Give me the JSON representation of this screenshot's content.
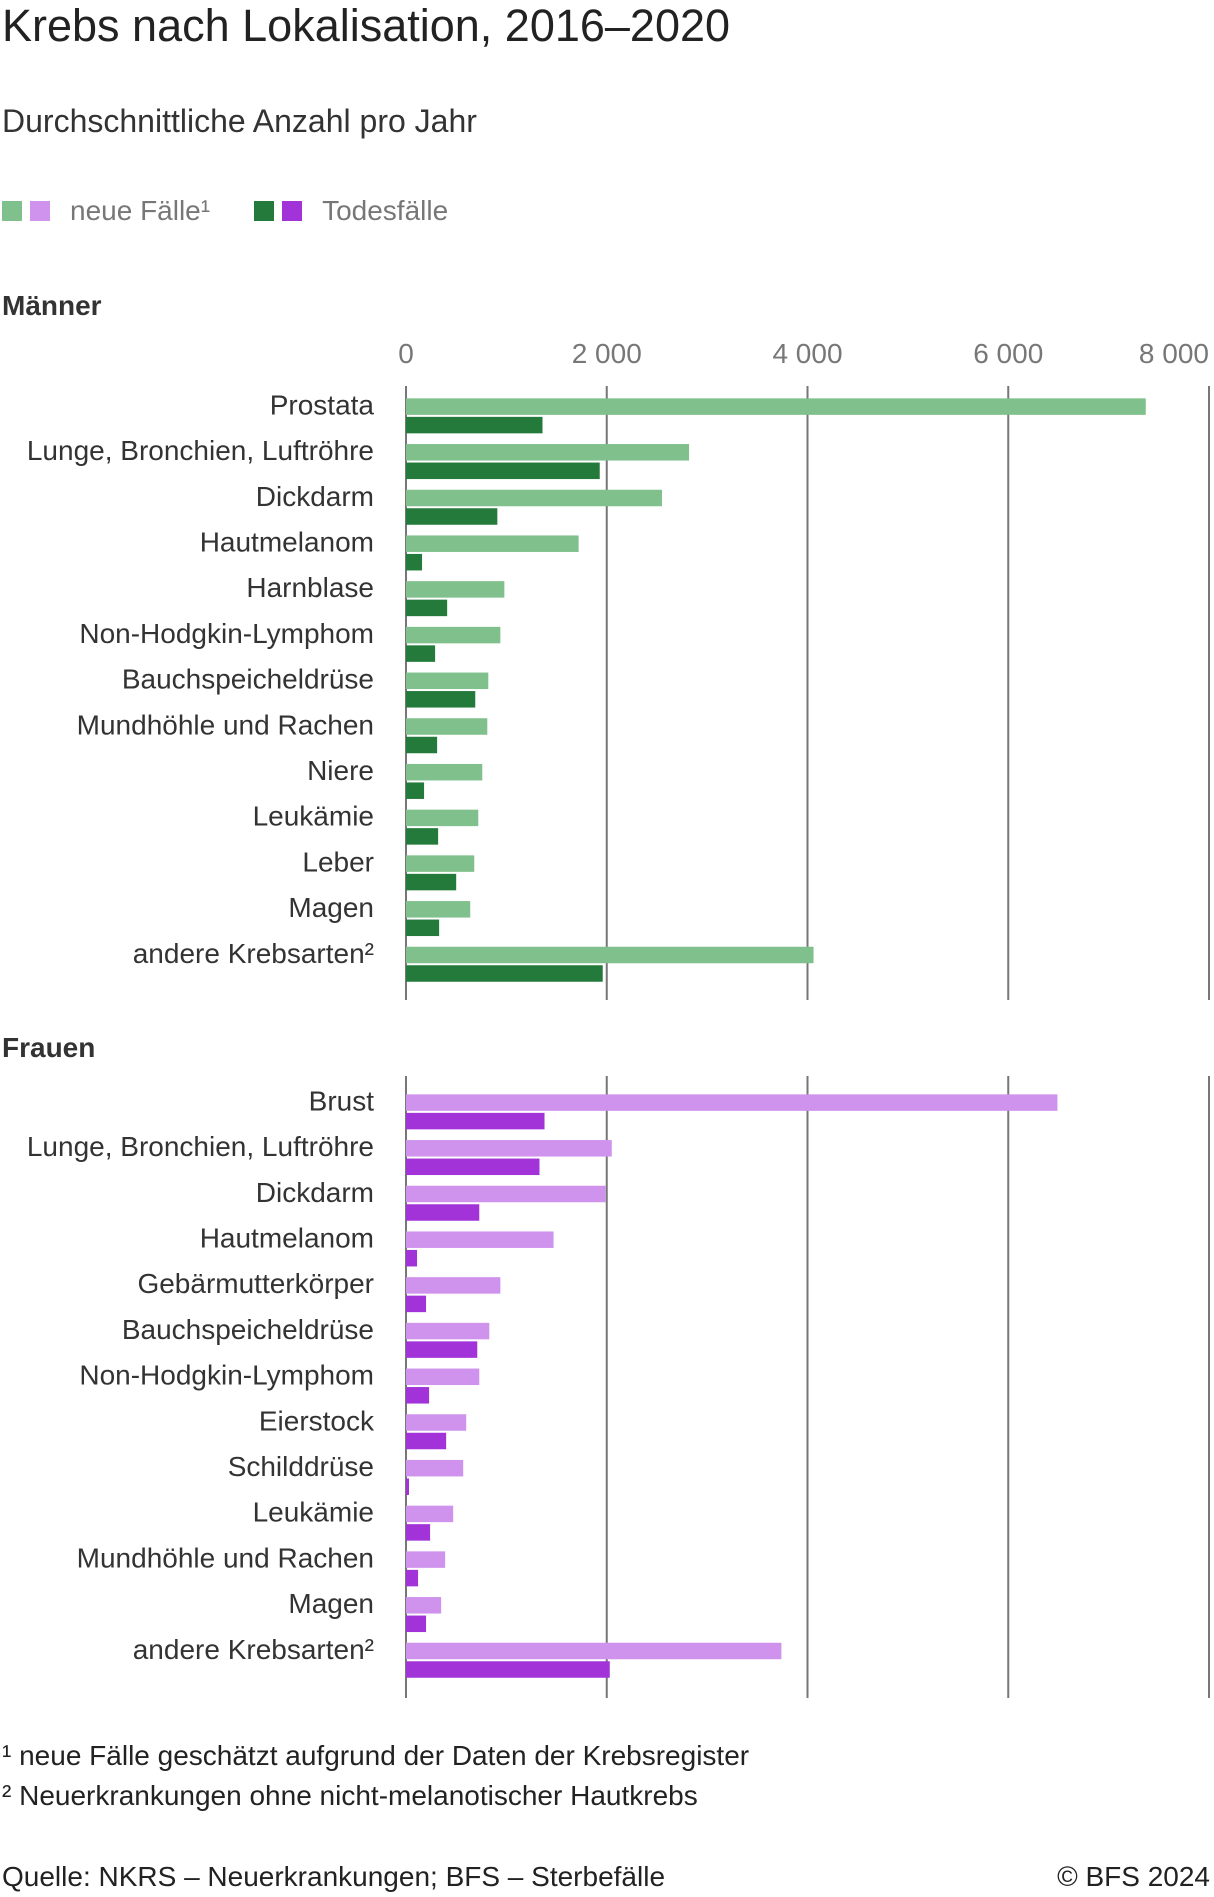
{
  "title": "Krebs nach Lokalisation, 2016–2020",
  "subtitle": "Durchschnittliche Anzahl pro Jahr",
  "legend": {
    "new_cases_label": "neue Fälle¹",
    "deaths_label": "Todesfälle"
  },
  "colors": {
    "men_new": "#7fc08c",
    "men_deaths": "#247a3b",
    "women_new": "#cf93ee",
    "women_deaths": "#a233d9",
    "grid": "#777777",
    "axis_text": "#777777"
  },
  "chart_data": [
    {
      "type": "bar",
      "orientation": "horizontal",
      "panel_title": "Männer",
      "categories": [
        "Prostata",
        "Lunge, Bronchien, Luftröhre",
        "Dickdarm",
        "Hautmelanom",
        "Harnblase",
        "Non-Hodgkin-Lymphom",
        "Bauchspeicheldrüse",
        "Mundhöhle und Rachen",
        "Niere",
        "Leukämie",
        "Leber",
        "Magen",
        "andere Krebsarten²"
      ],
      "series": [
        {
          "name": "neue Fälle¹",
          "values": [
            7370,
            2820,
            2550,
            1720,
            980,
            940,
            820,
            810,
            760,
            720,
            680,
            640,
            4060
          ]
        },
        {
          "name": "Todesfälle",
          "values": [
            1360,
            1930,
            910,
            160,
            410,
            290,
            690,
            310,
            180,
            320,
            500,
            330,
            1960
          ]
        }
      ],
      "xlim": [
        0,
        8000
      ],
      "ticks": [
        "0",
        "2 000",
        "4 000",
        "6 000",
        "8 000"
      ],
      "tick_values": [
        0,
        2000,
        4000,
        6000,
        8000
      ]
    },
    {
      "type": "bar",
      "orientation": "horizontal",
      "panel_title": "Frauen",
      "categories": [
        "Brust",
        "Lunge, Bronchien, Luftröhre",
        "Dickdarm",
        "Hautmelanom",
        "Gebärmutterkörper",
        "Bauchspeicheldrüse",
        "Non-Hodgkin-Lymphom",
        "Eierstock",
        "Schilddrüse",
        "Leukämie",
        "Mundhöhle und Rachen",
        "Magen",
        "andere Krebsarten²"
      ],
      "series": [
        {
          "name": "neue Fälle¹",
          "values": [
            6490,
            2050,
            1990,
            1470,
            940,
            830,
            730,
            600,
            570,
            470,
            390,
            350,
            3740
          ]
        },
        {
          "name": "Todesfälle",
          "values": [
            1380,
            1330,
            730,
            110,
            200,
            710,
            230,
            400,
            30,
            240,
            120,
            200,
            2030
          ]
        }
      ],
      "xlim": [
        0,
        8000
      ],
      "tick_values": [
        0,
        2000,
        4000,
        6000,
        8000
      ]
    }
  ],
  "footnotes": [
    "¹ neue Fälle geschätzt aufgrund der Daten der Krebsregister",
    "² Neuerkrankungen ohne nicht-melanotischer Hautkrebs"
  ],
  "source": "Quelle: NKRS – Neuerkrankungen; BFS – Sterbefälle",
  "copyright": "© BFS 2024"
}
